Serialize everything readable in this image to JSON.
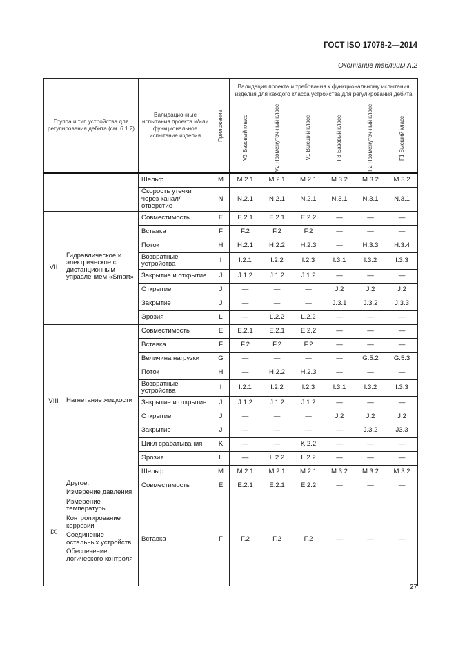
{
  "header": {
    "doc_code": "ГОСТ ISO 17078-2—2014",
    "caption": "Окончание таблицы А.2"
  },
  "table": {
    "head": {
      "group": "Группа и тип устройства для регулирования дебита (см. 6.1.2)",
      "test": "Валидационные испытания проекта и/или функциональное испытание изделия",
      "annex": "Приложение",
      "validation": "Валидация проекта и требования к функциональному испытания изделия для каждого класса устройства для регулирования дебита",
      "classes": [
        "V3 Базовый класс",
        "V2 Промежуточ-ный класс",
        "V1 Высший класс",
        "F3 Базовый класс",
        "F2 Промежуточ-ный класс",
        "F1 Высший класс"
      ]
    },
    "groups": [
      {
        "num": "",
        "name": [],
        "rows": [
          {
            "test": "Шельф",
            "annex": "M",
            "values": [
              "M.2.1",
              "M.2.1",
              "M.2.1",
              "M.3.2",
              "M.3.2",
              "M.3.2"
            ]
          },
          {
            "test": "Скорость утечки через канал/ отверстие",
            "annex": "N",
            "values": [
              "N.2.1",
              "N.2.1",
              "N.2.1",
              "N.3.1",
              "N.3.1",
              "N.3.1"
            ]
          }
        ]
      },
      {
        "num": "VII",
        "name": [
          "Гидравлическое и электрическое с дистанционным управлением «Smart»"
        ],
        "rows": [
          {
            "test": "Совместимость",
            "annex": "E",
            "values": [
              "E.2.1",
              "E.2.1",
              "E.2.2",
              "—",
              "—",
              "—"
            ]
          },
          {
            "test": "Вставка",
            "annex": "F",
            "values": [
              "F.2",
              "F.2",
              "F.2",
              "—",
              "—",
              "—"
            ]
          },
          {
            "test": "Поток",
            "annex": "H",
            "values": [
              "H.2.1",
              "H.2.2",
              "H.2.3",
              "—",
              "H.3.3",
              "H.3.4"
            ]
          },
          {
            "test": "Возвратные устройства",
            "annex": "I",
            "values": [
              "I.2.1",
              "I.2.2",
              "I.2.3",
              "I.3.1",
              "I.3.2",
              "I.3.3"
            ]
          },
          {
            "test": "Закрытие и открытие",
            "annex": "J",
            "values": [
              "J.1.2",
              "J.1.2",
              "J.1.2",
              "—",
              "—",
              "—"
            ]
          },
          {
            "test": "Открытие",
            "annex": "J",
            "values": [
              "—",
              "—",
              "—",
              "J.2",
              "J.2",
              "J.2"
            ]
          },
          {
            "test": "Закрытие",
            "annex": "J",
            "values": [
              "—",
              "—",
              "—",
              "J.3.1",
              "J.3.2",
              "J.3.3"
            ]
          },
          {
            "test": "Эрозия",
            "annex": "L",
            "values": [
              "—",
              "L.2.2",
              "L.2.2",
              "—",
              "—",
              "—"
            ]
          }
        ]
      },
      {
        "num": "VIII",
        "name": [
          "Нагнетание жидкости"
        ],
        "rows": [
          {
            "test": "Совместимость",
            "annex": "E",
            "values": [
              "E.2.1",
              "E.2.1",
              "E.2.2",
              "—",
              "—",
              "—"
            ]
          },
          {
            "test": "Вставка",
            "annex": "F",
            "values": [
              "F.2",
              "F.2",
              "F.2",
              "—",
              "—",
              "—"
            ]
          },
          {
            "test": "Величина нагрузки",
            "annex": "G",
            "values": [
              "—",
              "—",
              "—",
              "—",
              "G.5.2",
              "G.5.3"
            ]
          },
          {
            "test": "Поток",
            "annex": "H",
            "values": [
              "—",
              "H.2.2",
              "H.2.3",
              "—",
              "—",
              "—"
            ]
          },
          {
            "test": "Возвратные устройства",
            "annex": "I",
            "values": [
              "I.2.1",
              "I.2.2",
              "I.2.3",
              "I.3.1",
              "I.3.2",
              "I.3.3"
            ]
          },
          {
            "test": "Закрытие и открытие",
            "annex": "J",
            "values": [
              "J.1.2",
              "J.1.2",
              "J.1.2",
              "—",
              "—",
              "—"
            ]
          },
          {
            "test": "Открытие",
            "annex": "J",
            "values": [
              "—",
              "—",
              "—",
              "J.2",
              "J.2",
              "J.2"
            ]
          },
          {
            "test": "Закрытие",
            "annex": "J",
            "values": [
              "—",
              "—",
              "—",
              "—",
              "J.3.2",
              "J3.3"
            ]
          },
          {
            "test": "Цикл срабатывания",
            "annex": "K",
            "values": [
              "—",
              "—",
              "K.2.2",
              "—",
              "—",
              "—"
            ]
          },
          {
            "test": "Эрозия",
            "annex": "L",
            "values": [
              "—",
              "L.2.2",
              "L.2.2",
              "—",
              "—",
              "—"
            ]
          },
          {
            "test": "Шельф",
            "annex": "M",
            "values": [
              "M.2.1",
              "M.2.1",
              "M.2.1",
              "M.3.2",
              "M.3.2",
              "M.3.2"
            ]
          }
        ]
      },
      {
        "num": "IX",
        "name": [
          "Другое:",
          "Измерение давления",
          "Измерение температуры",
          "Контролирование коррозии",
          "Соединение остальных устройств",
          "Обеспечение логического контроля"
        ],
        "rows": [
          {
            "test": "Совместимость",
            "annex": "E",
            "values": [
              "E.2.1",
              "E.2.1",
              "E.2.2",
              "—",
              "—",
              "—"
            ]
          },
          {
            "test": "Вставка",
            "annex": "F",
            "values": [
              "F.2",
              "F.2",
              "F.2",
              "—",
              "—",
              "—"
            ]
          }
        ]
      }
    ]
  },
  "footer": {
    "page_number": "27"
  }
}
